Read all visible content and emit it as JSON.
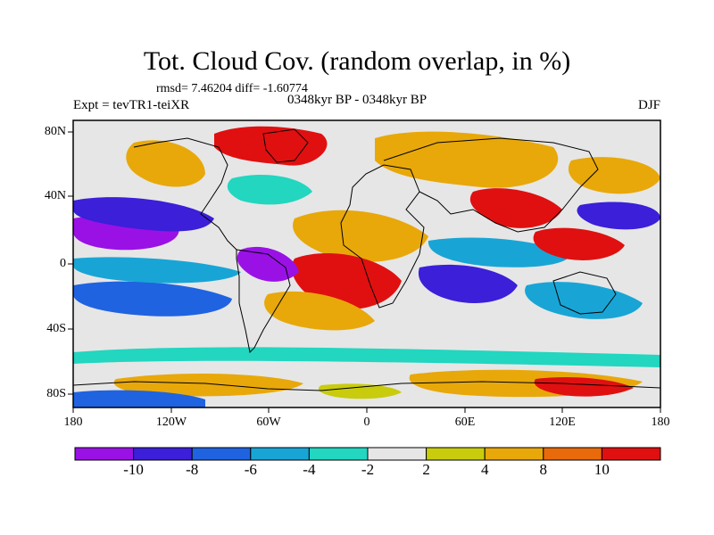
{
  "title": "Tot. Cloud Cov. (random overlap, in %)",
  "stats": "rmsd= 7.46204 diff= -1.60774",
  "experiment": "Expt = tevTR1-teiXR",
  "period": "0348kyr BP - 0348kyr BP",
  "season": "DJF",
  "lat_labels": [
    "80N",
    "40N",
    "0",
    "40S",
    "80S"
  ],
  "lon_labels": [
    "180",
    "120W",
    "60W",
    "0",
    "60E",
    "120E",
    "180"
  ],
  "colorbar": {
    "labels": [
      "-10",
      "-8",
      "-6",
      "-4",
      "-2",
      "2",
      "4",
      "8",
      "10"
    ],
    "colors": [
      "#9a11e6",
      "#3b1fd9",
      "#1f63e0",
      "#18a5d6",
      "#22d6c0",
      "#e6e6e6",
      "#c9cc0c",
      "#e8a80a",
      "#e86a0a",
      "#e01010"
    ]
  },
  "field": {
    "background": "#e6e6e6",
    "colors": {
      "purple": "#9a11e6",
      "blue": "#3b1fd9",
      "mid_blue": "#1f63e0",
      "light_blue": "#18a5d6",
      "cyan": "#22d6c0",
      "yellow": "#c9cc0c",
      "orange": "#e8a80a",
      "dark_orange": "#e86a0a",
      "red": "#e01010"
    }
  }
}
